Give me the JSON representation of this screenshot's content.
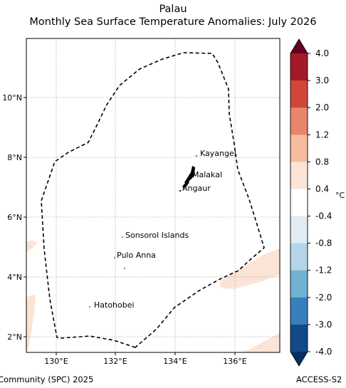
{
  "title": {
    "line1": "Palau",
    "line2": "Monthly Sea Surface Temperature Anomalies: July 2026"
  },
  "map": {
    "lon_ticks": [
      "130°E",
      "132°E",
      "134°E",
      "136°E"
    ],
    "lat_ticks": [
      "10°N",
      "8°N",
      "6°N",
      "4°N",
      "2°N"
    ],
    "lon_range": [
      129.0,
      137.5
    ],
    "lat_range": [
      1.5,
      11.8
    ],
    "grid": true,
    "gridline_style": "dotted",
    "eez_boundary_style": "dashed",
    "places": [
      {
        "name": "Kayangel",
        "lon": 134.72,
        "lat": 8.07
      },
      {
        "name": "Malakal",
        "lon": 134.45,
        "lat": 7.33
      },
      {
        "name": "Angaur",
        "lon": 134.15,
        "lat": 6.9
      },
      {
        "name": "Sonsorol Islands",
        "lon": 132.22,
        "lat": 5.33
      },
      {
        "name": "Pulo Anna",
        "lon": 131.95,
        "lat": 4.65
      },
      {
        "name": "Hatohobei",
        "lon": 131.12,
        "lat": 3.01
      }
    ],
    "unlabeled_islet": {
      "lon": 132.3,
      "lat": 4.3
    }
  },
  "colorbar": {
    "unit": "°C",
    "labels": [
      "4.0",
      "3.0",
      "2.0",
      "1.2",
      "0.8",
      "0.4",
      "-0.4",
      "-0.8",
      "-1.2",
      "-2.0",
      "-3.0",
      "-4.0"
    ],
    "colors": [
      "#67001f",
      "#a51a2b",
      "#d0473a",
      "#e8866a",
      "#f6bba0",
      "#fbe4d6",
      "#ffffff",
      "#e1ecf4",
      "#b4d5e8",
      "#72b0d4",
      "#3780bb",
      "#114a87",
      "#053061"
    ],
    "extend": "both"
  },
  "footer": {
    "left": "Community (SPC) 2025",
    "right": "ACCESS-S2"
  }
}
